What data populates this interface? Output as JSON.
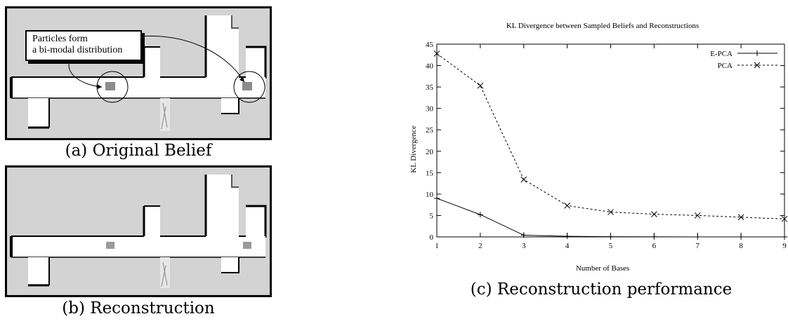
{
  "figure": {
    "panel_a": {
      "caption": "(a) Original Belief",
      "callout_line1": "Particles form",
      "callout_line2": "a bi-modal distribution"
    },
    "panel_b": {
      "caption": "(b) Reconstruction"
    },
    "panel_c": {
      "caption": "(c) Reconstruction performance"
    }
  },
  "colors": {
    "map_background": "#d3d3d3",
    "corridor": "#ffffff",
    "particles": "#8c8c8c"
  },
  "chart_data": {
    "type": "line",
    "title": "KL Divergence between Sampled Beliefs and Reconstructions",
    "xlabel": "Number of Bases",
    "ylabel": "KL Divergence",
    "xlim": [
      1,
      9
    ],
    "ylim": [
      0,
      45
    ],
    "xticks": [
      1,
      2,
      3,
      4,
      5,
      6,
      7,
      8,
      9
    ],
    "yticks": [
      0,
      5,
      10,
      15,
      20,
      25,
      30,
      35,
      40,
      45
    ],
    "legend_position": "top-right",
    "grid": false,
    "series": [
      {
        "name": "E-PCA",
        "marker": "plus",
        "line": "solid",
        "x": [
          1,
          2,
          3,
          4,
          5,
          6,
          7,
          8,
          9
        ],
        "y": [
          9.0,
          5.2,
          0.4,
          0.15,
          0.05,
          0.02,
          0.01,
          0.01,
          0.0
        ]
      },
      {
        "name": "PCA",
        "marker": "x",
        "line": "dashed",
        "x": [
          1,
          2,
          3,
          4,
          5,
          6,
          7,
          8,
          9
        ],
        "y": [
          42.8,
          35.3,
          13.4,
          7.3,
          5.8,
          5.3,
          5.0,
          4.6,
          4.2
        ]
      }
    ]
  }
}
